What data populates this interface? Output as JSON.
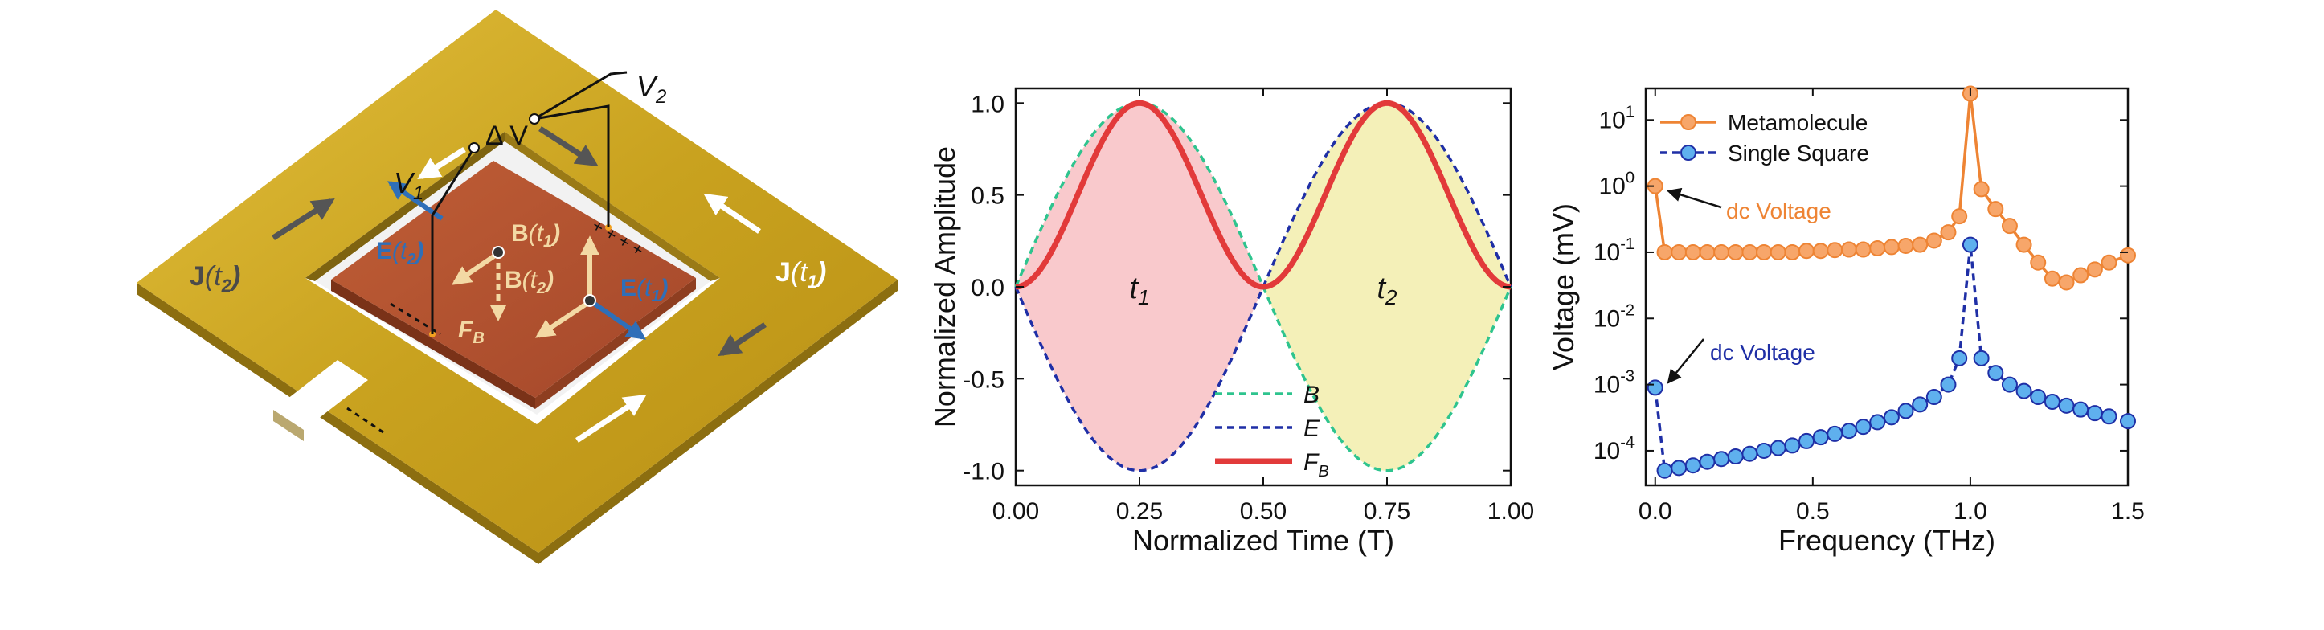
{
  "panel_a": {
    "labels": {
      "v1": "V1",
      "v2": "V2",
      "delta_v": "ΔV",
      "j_t1": "J(t1)",
      "j_t2": "J(t2)",
      "e_t1": "E(t1)",
      "e_t2": "E(t2)",
      "b_t1": "B(t1)",
      "b_t2": "B(t2)",
      "f_b": "FB",
      "plus_row": "+ + + +"
    },
    "colors": {
      "ring": "#C9A21F",
      "ring_dark": "#8C6E10",
      "ring_light": "#E6C64A",
      "substrate": "#B0512F",
      "substrate_edge": "#7A3218",
      "e_arrow": "#2F6FB8",
      "b_arrow": "#F3D9A4",
      "current_arrow_white": "#FFFFFF",
      "current_arrow_dark": "#555555"
    }
  },
  "chart_data": [
    {
      "type": "line",
      "xlabel": "Normalized Time (T)",
      "ylabel": "Normalized Amplitude",
      "xlim": [
        0,
        1
      ],
      "ylim": [
        -1.08,
        1.08
      ],
      "xticks": [
        "0.00",
        "0.25",
        "0.50",
        "0.75",
        "1.00"
      ],
      "yticks": [
        "-1.0",
        "-0.5",
        "0.0",
        "0.5",
        "1.0"
      ],
      "series": [
        {
          "name": "B",
          "style": "dashed",
          "color": "#2EC48E",
          "function": "B(t) = sin(2πt)"
        },
        {
          "name": "E",
          "style": "dashed",
          "color": "#1F2FA6",
          "function": "E(t) = -sin(2πt)"
        },
        {
          "name": "FB",
          "style": "solid",
          "color": "#E23A3A",
          "function": "F_B(t) = sin²(2πt)"
        }
      ],
      "fills": [
        {
          "x_range": [
            0,
            0.5
          ],
          "color": "#F9C9CC"
        },
        {
          "x_range": [
            0.5,
            1
          ],
          "color": "#F4F0B8"
        }
      ],
      "annotations": [
        {
          "text": "t1",
          "x": 0.25,
          "y": 0.0
        },
        {
          "text": "t2",
          "x": 0.75,
          "y": 0.0
        }
      ],
      "legend_position": "bottom-right"
    },
    {
      "type": "line",
      "xlabel": "Frequency (THz)",
      "ylabel": "Voltage (mV)",
      "xlim": [
        -0.03,
        1.5
      ],
      "y_scale": "log",
      "ylim": [
        3e-05,
        30
      ],
      "xticks": [
        "0.0",
        "0.5",
        "1.0",
        "1.5"
      ],
      "yticks": [
        "10^-4",
        "10^-3",
        "10^-2",
        "10^-1",
        "10^0",
        "10^1"
      ],
      "series": [
        {
          "name": "Metamolecule",
          "color": "#EE8434",
          "marker_fill": "#F7A66A",
          "style": "solid",
          "x": [
            0.0,
            0.03,
            0.075,
            0.12,
            0.165,
            0.21,
            0.255,
            0.3,
            0.345,
            0.39,
            0.435,
            0.48,
            0.525,
            0.57,
            0.615,
            0.66,
            0.705,
            0.75,
            0.795,
            0.84,
            0.885,
            0.93,
            0.965,
            1.0,
            1.035,
            1.08,
            1.125,
            1.17,
            1.215,
            1.26,
            1.305,
            1.35,
            1.395,
            1.44,
            1.5
          ],
          "y": [
            1.0,
            0.1,
            0.1,
            0.1,
            0.1,
            0.1,
            0.1,
            0.1,
            0.1,
            0.1,
            0.1,
            0.105,
            0.105,
            0.108,
            0.11,
            0.11,
            0.115,
            0.12,
            0.125,
            0.13,
            0.15,
            0.2,
            0.35,
            25.0,
            0.9,
            0.45,
            0.25,
            0.13,
            0.07,
            0.04,
            0.035,
            0.045,
            0.055,
            0.07,
            0.09
          ]
        },
        {
          "name": "Single Square",
          "color": "#1F2FA6",
          "marker_fill": "#5FB0EE",
          "style": "dashed",
          "x": [
            0.0,
            0.03,
            0.075,
            0.12,
            0.165,
            0.21,
            0.255,
            0.3,
            0.345,
            0.39,
            0.435,
            0.48,
            0.525,
            0.57,
            0.615,
            0.66,
            0.705,
            0.75,
            0.795,
            0.84,
            0.885,
            0.93,
            0.965,
            1.0,
            1.035,
            1.08,
            1.125,
            1.17,
            1.215,
            1.26,
            1.305,
            1.35,
            1.395,
            1.44,
            1.5
          ],
          "y": [
            0.0009,
            5e-05,
            5.5e-05,
            6e-05,
            6.8e-05,
            7.5e-05,
            8.2e-05,
            9e-05,
            0.0001,
            0.00011,
            0.00012,
            0.00014,
            0.00016,
            0.00018,
            0.0002,
            0.00023,
            0.00027,
            0.00032,
            0.0004,
            0.0005,
            0.00065,
            0.001,
            0.0025,
            0.13,
            0.0025,
            0.0015,
            0.001,
            0.0008,
            0.00065,
            0.00055,
            0.00048,
            0.00042,
            0.00037,
            0.00033,
            0.00028
          ]
        }
      ],
      "annotations": [
        {
          "text": "dc Voltage",
          "color": "#EE8434",
          "points_to": {
            "x": 0.0,
            "y": 1.0
          }
        },
        {
          "text": "dc Voltage",
          "color": "#1F2FA6",
          "points_to": {
            "x": 0.0,
            "y": 0.0009
          }
        }
      ],
      "legend_position": "top-left"
    }
  ]
}
